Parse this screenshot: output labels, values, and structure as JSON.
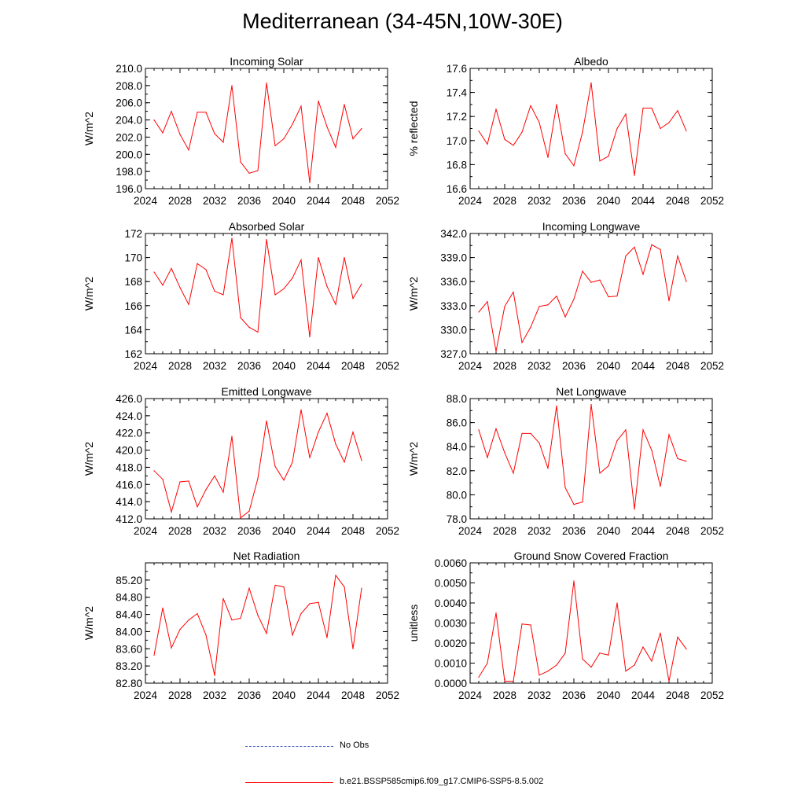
{
  "title": "Mediterranean (34-45N,10W-30E)",
  "legend": [
    {
      "label": "No Obs",
      "color": "#4a5fc0",
      "style": "dashed"
    },
    {
      "label": "b.e21.BSSP585cmip6.f09_g17.CMIP6-SSP5-8.5.002",
      "color": "#ff0000",
      "style": "solid"
    }
  ],
  "chart_data": [
    {
      "type": "line",
      "title": "Incoming Solar",
      "ylabel": "W/m^2",
      "xlabel": "",
      "xlim": [
        2024,
        2052
      ],
      "ylim": [
        196,
        210
      ],
      "xticks": [
        "2024",
        "2028",
        "2032",
        "2036",
        "2040",
        "2044",
        "2048",
        "2052"
      ],
      "yticks": [
        "196.0",
        "198.0",
        "200.0",
        "202.0",
        "204.0",
        "206.0",
        "208.0",
        "210.0"
      ],
      "series": [
        {
          "name": "b.e21.BSSP585cmip6.f09_g17.CMIP6-SSP5-8.5.002",
          "x": [
            2025,
            2026,
            2027,
            2028,
            2029,
            2030,
            2031,
            2032,
            2033,
            2034,
            2035,
            2036,
            2037,
            2038,
            2039,
            2040,
            2041,
            2042,
            2043,
            2044,
            2045,
            2046,
            2047,
            2048,
            2049
          ],
          "values": [
            204.0,
            202.5,
            205.0,
            202.3,
            200.5,
            204.9,
            204.9,
            202.4,
            201.4,
            208.0,
            199.1,
            197.8,
            198.1,
            208.3,
            201.0,
            201.8,
            203.5,
            205.6,
            196.7,
            206.2,
            203.2,
            200.8,
            205.8,
            201.8,
            203.0
          ]
        }
      ]
    },
    {
      "type": "line",
      "title": "Albedo",
      "ylabel": "% reflected",
      "xlabel": "",
      "xlim": [
        2024,
        2052
      ],
      "ylim": [
        16.6,
        17.6
      ],
      "xticks": [
        "2024",
        "2028",
        "2032",
        "2036",
        "2040",
        "2044",
        "2048",
        "2052"
      ],
      "yticks": [
        "16.6",
        "16.8",
        "17.0",
        "17.2",
        "17.4",
        "17.6"
      ],
      "series": [
        {
          "name": "b.e21.BSSP585cmip6.f09_g17.CMIP6-SSP5-8.5.002",
          "x": [
            2025,
            2026,
            2027,
            2028,
            2029,
            2030,
            2031,
            2032,
            2033,
            2034,
            2035,
            2036,
            2037,
            2038,
            2039,
            2040,
            2041,
            2042,
            2043,
            2044,
            2045,
            2046,
            2047,
            2048,
            2049
          ],
          "values": [
            17.08,
            16.97,
            17.26,
            17.01,
            16.96,
            17.07,
            17.29,
            17.15,
            16.86,
            17.3,
            16.89,
            16.79,
            17.07,
            17.48,
            16.83,
            16.87,
            17.1,
            17.22,
            16.71,
            17.27,
            17.27,
            17.1,
            17.15,
            17.25,
            17.08
          ]
        }
      ]
    },
    {
      "type": "line",
      "title": "Absorbed Solar",
      "ylabel": "W/m^2",
      "xlabel": "",
      "xlim": [
        2024,
        2052
      ],
      "ylim": [
        162,
        172
      ],
      "xticks": [
        "2024",
        "2028",
        "2032",
        "2036",
        "2040",
        "2044",
        "2048",
        "2052"
      ],
      "yticks": [
        "162",
        "164",
        "166",
        "168",
        "170",
        "172"
      ],
      "series": [
        {
          "name": "b.e21.BSSP585cmip6.f09_g17.CMIP6-SSP5-8.5.002",
          "x": [
            2025,
            2026,
            2027,
            2028,
            2029,
            2030,
            2031,
            2032,
            2033,
            2034,
            2035,
            2036,
            2037,
            2038,
            2039,
            2040,
            2041,
            2042,
            2043,
            2044,
            2045,
            2046,
            2047,
            2048,
            2049
          ],
          "values": [
            168.8,
            167.7,
            169.1,
            167.5,
            166.1,
            169.5,
            169.0,
            167.2,
            166.9,
            171.6,
            165.0,
            164.2,
            163.8,
            171.5,
            166.9,
            167.4,
            168.3,
            169.8,
            163.4,
            170.0,
            167.6,
            166.1,
            170.0,
            166.6,
            167.8
          ]
        }
      ]
    },
    {
      "type": "line",
      "title": "Incoming Longwave",
      "ylabel": "W/m^2",
      "xlabel": "",
      "xlim": [
        2024,
        2052
      ],
      "ylim": [
        327,
        342
      ],
      "xticks": [
        "2024",
        "2028",
        "2032",
        "2036",
        "2040",
        "2044",
        "2048",
        "2052"
      ],
      "yticks": [
        "327.0",
        "330.0",
        "333.0",
        "336.0",
        "339.0",
        "342.0"
      ],
      "series": [
        {
          "name": "b.e21.BSSP585cmip6.f09_g17.CMIP6-SSP5-8.5.002",
          "x": [
            2025,
            2026,
            2027,
            2028,
            2029,
            2030,
            2031,
            2032,
            2033,
            2034,
            2035,
            2036,
            2037,
            2038,
            2039,
            2040,
            2041,
            2042,
            2043,
            2044,
            2045,
            2046,
            2047,
            2048,
            2049
          ],
          "values": [
            332.2,
            333.5,
            327.3,
            332.9,
            334.7,
            328.4,
            330.3,
            332.9,
            333.1,
            334.2,
            331.6,
            333.8,
            337.3,
            335.9,
            336.2,
            334.1,
            334.2,
            339.2,
            340.3,
            336.9,
            340.6,
            340.0,
            333.6,
            339.2,
            336.0
          ]
        }
      ]
    },
    {
      "type": "line",
      "title": "Emitted Longwave",
      "ylabel": "W/m^2",
      "xlabel": "",
      "xlim": [
        2024,
        2052
      ],
      "ylim": [
        412,
        426
      ],
      "xticks": [
        "2024",
        "2028",
        "2032",
        "2036",
        "2040",
        "2044",
        "2048",
        "2052"
      ],
      "yticks": [
        "412.0",
        "414.0",
        "416.0",
        "418.0",
        "420.0",
        "422.0",
        "424.0",
        "426.0"
      ],
      "series": [
        {
          "name": "b.e21.BSSP585cmip6.f09_g17.CMIP6-SSP5-8.5.002",
          "x": [
            2025,
            2026,
            2027,
            2028,
            2029,
            2030,
            2031,
            2032,
            2033,
            2034,
            2035,
            2036,
            2037,
            2038,
            2039,
            2040,
            2041,
            2042,
            2043,
            2044,
            2045,
            2046,
            2047,
            2048,
            2049
          ],
          "values": [
            417.6,
            416.6,
            412.8,
            416.3,
            416.4,
            413.4,
            415.4,
            417.0,
            415.1,
            421.6,
            412.1,
            412.9,
            416.7,
            423.4,
            418.1,
            416.5,
            418.6,
            424.7,
            419.1,
            422.1,
            424.3,
            420.7,
            418.6,
            422.1,
            418.8
          ]
        }
      ]
    },
    {
      "type": "line",
      "title": "Net Longwave",
      "ylabel": "W/m^2",
      "xlabel": "",
      "xlim": [
        2024,
        2052
      ],
      "ylim": [
        78,
        88
      ],
      "xticks": [
        "2024",
        "2028",
        "2032",
        "2036",
        "2040",
        "2044",
        "2048",
        "2052"
      ],
      "yticks": [
        "78.0",
        "80.0",
        "82.0",
        "84.0",
        "86.0",
        "88.0"
      ],
      "series": [
        {
          "name": "b.e21.BSSP585cmip6.f09_g17.CMIP6-SSP5-8.5.002",
          "x": [
            2025,
            2026,
            2027,
            2028,
            2029,
            2030,
            2031,
            2032,
            2033,
            2034,
            2035,
            2036,
            2037,
            2038,
            2039,
            2040,
            2041,
            2042,
            2043,
            2044,
            2045,
            2046,
            2047,
            2048,
            2049
          ],
          "values": [
            85.4,
            83.1,
            85.5,
            83.5,
            81.8,
            85.1,
            85.1,
            84.3,
            82.2,
            87.4,
            80.6,
            79.2,
            79.4,
            87.5,
            81.8,
            82.4,
            84.5,
            85.4,
            78.8,
            85.4,
            83.7,
            80.7,
            85.0,
            83.0,
            82.8
          ]
        }
      ]
    },
    {
      "type": "line",
      "title": "Net Radiation",
      "ylabel": "W/m^2",
      "xlabel": "",
      "xlim": [
        2024,
        2052
      ],
      "ylim": [
        82.8,
        85.6
      ],
      "xticks": [
        "2024",
        "2028",
        "2032",
        "2036",
        "2040",
        "2044",
        "2048",
        "2052"
      ],
      "yticks": [
        "82.80",
        "83.20",
        "83.60",
        "84.00",
        "84.40",
        "84.80",
        "85.20"
      ],
      "series": [
        {
          "name": "b.e21.BSSP585cmip6.f09_g17.CMIP6-SSP5-8.5.002",
          "x": [
            2025,
            2026,
            2027,
            2028,
            2029,
            2030,
            2031,
            2032,
            2033,
            2034,
            2035,
            2036,
            2037,
            2038,
            2039,
            2040,
            2041,
            2042,
            2043,
            2044,
            2045,
            2046,
            2047,
            2048,
            2049
          ],
          "values": [
            83.45,
            84.55,
            83.62,
            84.05,
            84.27,
            84.42,
            83.92,
            82.98,
            84.77,
            84.27,
            84.31,
            85.01,
            84.38,
            83.96,
            85.08,
            85.04,
            83.92,
            84.42,
            84.65,
            84.68,
            83.86,
            85.31,
            85.04,
            83.6,
            85.01
          ]
        }
      ]
    },
    {
      "type": "line",
      "title": "Ground Snow Covered Fraction",
      "ylabel": "unitless",
      "xlabel": "",
      "xlim": [
        2024,
        2052
      ],
      "ylim": [
        0,
        0.006
      ],
      "xticks": [
        "2024",
        "2028",
        "2032",
        "2036",
        "2040",
        "2044",
        "2048",
        "2052"
      ],
      "yticks": [
        "0.0000",
        "0.0010",
        "0.0020",
        "0.0030",
        "0.0040",
        "0.0050",
        "0.0060"
      ],
      "series": [
        {
          "name": "b.e21.BSSP585cmip6.f09_g17.CMIP6-SSP5-8.5.002",
          "x": [
            2025,
            2026,
            2027,
            2028,
            2029,
            2030,
            2031,
            2032,
            2033,
            2034,
            2035,
            2036,
            2037,
            2038,
            2039,
            2040,
            2041,
            2042,
            2043,
            2044,
            2045,
            2046,
            2047,
            2048,
            2049
          ],
          "values": [
            0.0003,
            0.001,
            0.0035,
            0.0001,
            0.0001,
            0.00295,
            0.0029,
            0.0004,
            0.0006,
            0.0009,
            0.0015,
            0.0051,
            0.0012,
            0.0008,
            0.0015,
            0.0014,
            0.004,
            0.0006,
            0.0009,
            0.0018,
            0.0011,
            0.0025,
            0.0001,
            0.0023,
            0.0017
          ]
        }
      ]
    }
  ]
}
